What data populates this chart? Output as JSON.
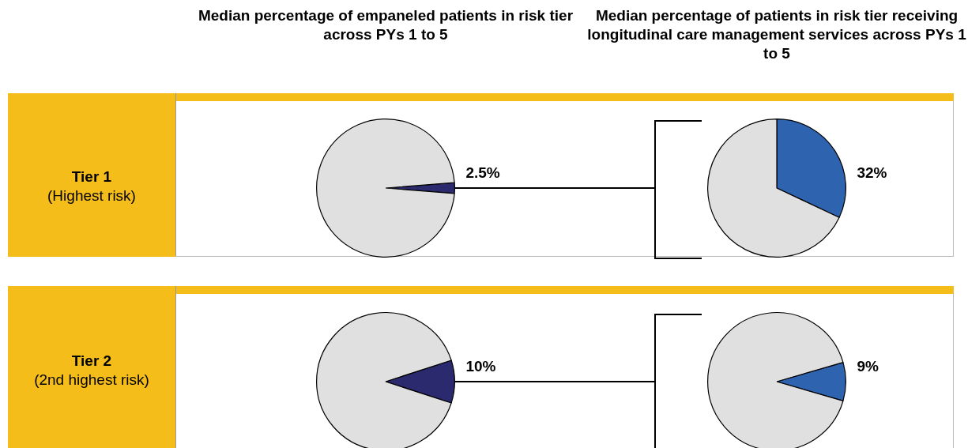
{
  "chart_data": [
    {
      "type": "pie",
      "title": "Median percentage of empaneled patients in risk tier across PYs 1 to 5",
      "categories": [
        null,
        null
      ],
      "values": [
        2.5,
        97.5
      ],
      "colors": [
        "#2b2a6e",
        "#e0e0e0"
      ],
      "value_labels": [
        "2.5%",
        null
      ],
      "annotations": [
        "Tier 1",
        "(Highest risk)"
      ]
    },
    {
      "type": "pie",
      "title": "Median percentage of patients in risk tier receiving longitudinal care management services across PYs 1 to 5",
      "categories": [
        null,
        null
      ],
      "values": [
        32,
        68
      ],
      "colors": [
        "#2e63b0",
        "#e0e0e0"
      ],
      "value_labels": [
        "32%",
        null
      ]
    },
    {
      "type": "pie",
      "categories": [
        null,
        null
      ],
      "values": [
        10,
        90
      ],
      "colors": [
        "#2b2a6e",
        "#e0e0e0"
      ],
      "value_labels": [
        "10%",
        null
      ],
      "annotations": [
        "Tier 2",
        "(2nd highest risk)"
      ]
    },
    {
      "type": "pie",
      "categories": [
        null,
        null
      ],
      "values": [
        9,
        91
      ],
      "colors": [
        "#2e63b0",
        "#e0e0e0"
      ],
      "value_labels": [
        "9%",
        null
      ]
    }
  ]
}
